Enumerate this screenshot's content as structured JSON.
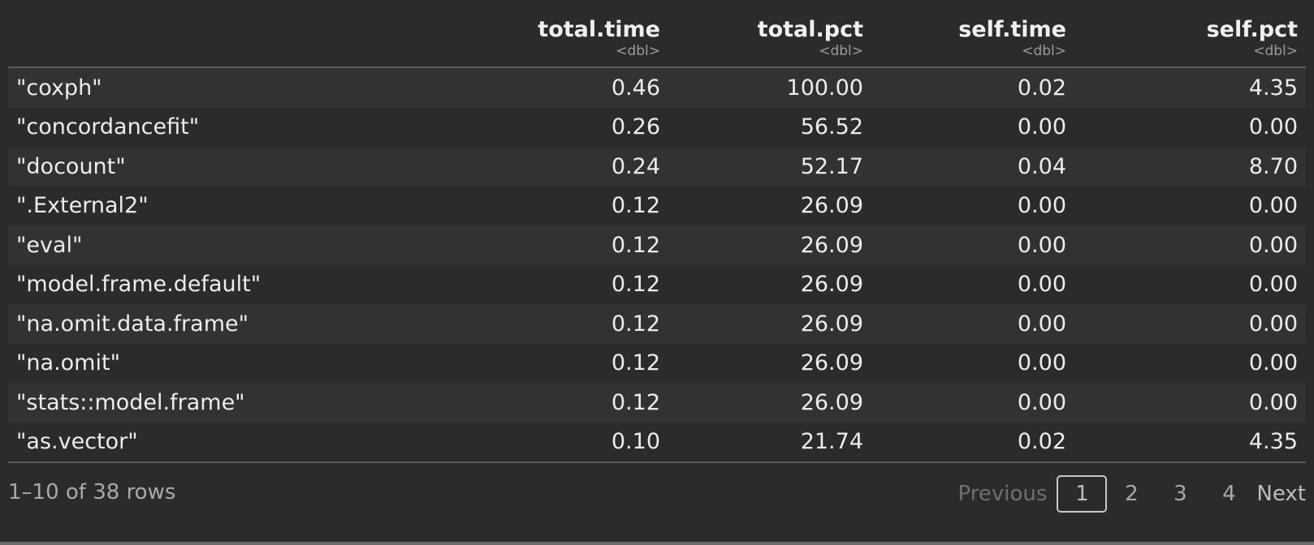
{
  "columns": [
    {
      "name": "",
      "type": ""
    },
    {
      "name": "total.time",
      "type": "<dbl>"
    },
    {
      "name": "total.pct",
      "type": "<dbl>"
    },
    {
      "name": "self.time",
      "type": "<dbl>"
    },
    {
      "name": "self.pct",
      "type": "<dbl>"
    }
  ],
  "rows": [
    [
      "\"coxph\"",
      "0.46",
      "100.00",
      "0.02",
      "4.35"
    ],
    [
      "\"concordancefit\"",
      "0.26",
      "56.52",
      "0.00",
      "0.00"
    ],
    [
      "\"docount\"",
      "0.24",
      "52.17",
      "0.04",
      "8.70"
    ],
    [
      "\".External2\"",
      "0.12",
      "26.09",
      "0.00",
      "0.00"
    ],
    [
      "\"eval\"",
      "0.12",
      "26.09",
      "0.00",
      "0.00"
    ],
    [
      "\"model.frame.default\"",
      "0.12",
      "26.09",
      "0.00",
      "0.00"
    ],
    [
      "\"na.omit.data.frame\"",
      "0.12",
      "26.09",
      "0.00",
      "0.00"
    ],
    [
      "\"na.omit\"",
      "0.12",
      "26.09",
      "0.00",
      "0.00"
    ],
    [
      "\"stats::model.frame\"",
      "0.12",
      "26.09",
      "0.00",
      "0.00"
    ],
    [
      "\"as.vector\"",
      "0.10",
      "21.74",
      "0.02",
      "4.35"
    ]
  ],
  "footer": {
    "row_info": "1–10 of 38 rows",
    "previous_label": "Previous",
    "pages": [
      "1",
      "2",
      "3",
      "4"
    ],
    "current_page": "1",
    "next_label": "Next"
  },
  "colors": {
    "background": "#2b2b2b",
    "row_alt": "#323232",
    "text": "#ececec",
    "muted": "#9b9b9b",
    "disabled": "#6f6f6f"
  }
}
